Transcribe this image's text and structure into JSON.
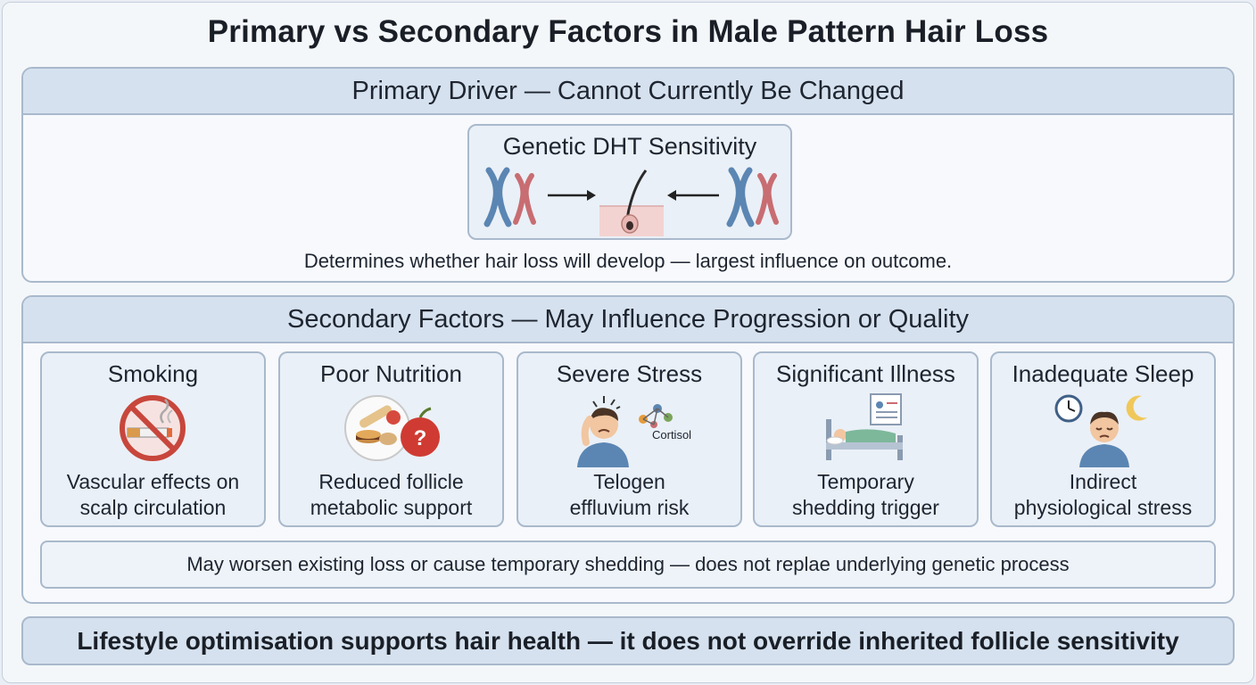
{
  "title": "Primary vs Secondary Factors in Male Pattern Hair Loss",
  "primary": {
    "header": "Primary Driver — Cannot Currently Be Changed",
    "box_title": "Genetic DHT Sensitivity",
    "caption": "Determines whether hair loss will develop — largest influence on outcome.",
    "icons": [
      "chromosome-pair-icon",
      "arrow-right-icon",
      "hair-follicle-icon",
      "arrow-left-icon",
      "chromosome-pair-icon"
    ]
  },
  "secondary": {
    "header": "Secondary Factors — May Influence Progression or Quality",
    "factors": [
      {
        "title": "Smoking",
        "desc_line1": "Vascular effects on",
        "desc_line2": "scalp circulation",
        "icon": "no-smoking-icon"
      },
      {
        "title": "Poor Nutrition",
        "desc_line1": "Reduced follicle",
        "desc_line2": "metabolic support",
        "icon": "food-plate-icon"
      },
      {
        "title": "Severe Stress",
        "desc_line1": "Telogen",
        "desc_line2": "effluvium risk",
        "icon": "stressed-person-icon",
        "icon_label": "Cortisol"
      },
      {
        "title": "Significant Illness",
        "desc_line1": "Temporary",
        "desc_line2": "shedding trigger",
        "icon": "hospital-bed-icon"
      },
      {
        "title": "Inadequate Sleep",
        "desc_line1": "Indirect",
        "desc_line2": "physiological stress",
        "icon": "tired-person-icon"
      }
    ],
    "note": "May worsen existing loss or cause temporary shedding — does not replae underlying genetic process"
  },
  "footer": "Lifestyle optimisation supports hair health — it does not override inherited follicle sensitivity",
  "colors": {
    "header_bg": "#d5e1ee",
    "border": "#a9b9cc",
    "chromosome_blue": "#5b86b3",
    "chromosome_red": "#c86d72",
    "warning_red": "#c8463c"
  }
}
